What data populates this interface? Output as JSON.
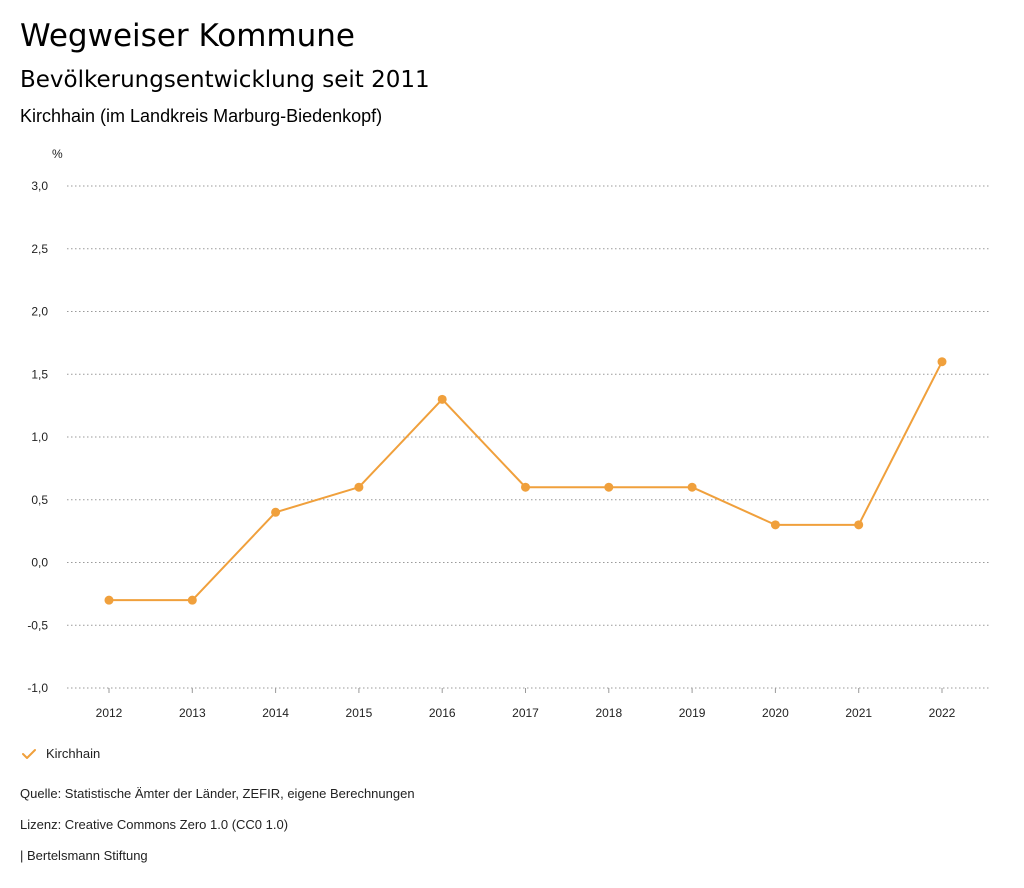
{
  "header": {
    "title": "Wegweiser Kommune",
    "subtitle": "Bevölkerungsentwicklung seit 2011",
    "region": "Kirchhain (im Landkreis Marburg-Biedenkopf)"
  },
  "chart_data": {
    "type": "line",
    "title": "Bevölkerungsentwicklung seit 2011",
    "ylabel": "%",
    "xlabel": "",
    "categories": [
      "2012",
      "2013",
      "2014",
      "2015",
      "2016",
      "2017",
      "2018",
      "2019",
      "2020",
      "2021",
      "2022"
    ],
    "series": [
      {
        "name": "Kirchhain",
        "values": [
          -0.3,
          -0.3,
          0.4,
          0.6,
          1.3,
          0.6,
          0.6,
          0.6,
          0.3,
          0.3,
          1.6
        ],
        "color": "#f0a03c"
      }
    ],
    "ylim": [
      -1.0,
      3.0
    ],
    "yticks": [
      3.0,
      2.5,
      2.0,
      1.5,
      1.0,
      0.5,
      0.0,
      -0.5,
      -1.0
    ],
    "ytick_labels": [
      "3,0",
      "2,5",
      "2,0",
      "1,5",
      "1,0",
      "0,5",
      "0,0",
      "-0,5",
      "-1,0"
    ],
    "grid": true,
    "legend_position": "bottom-left"
  },
  "legend": {
    "label": "Kirchhain",
    "icon": "check-icon",
    "color": "#f0a03c"
  },
  "footer": {
    "source": "Quelle: Statistische Ämter der Länder, ZEFIR, eigene Berechnungen",
    "license": "Lizenz: Creative Commons Zero 1.0 (CC0 1.0)",
    "publisher": "| Bertelsmann Stiftung"
  }
}
